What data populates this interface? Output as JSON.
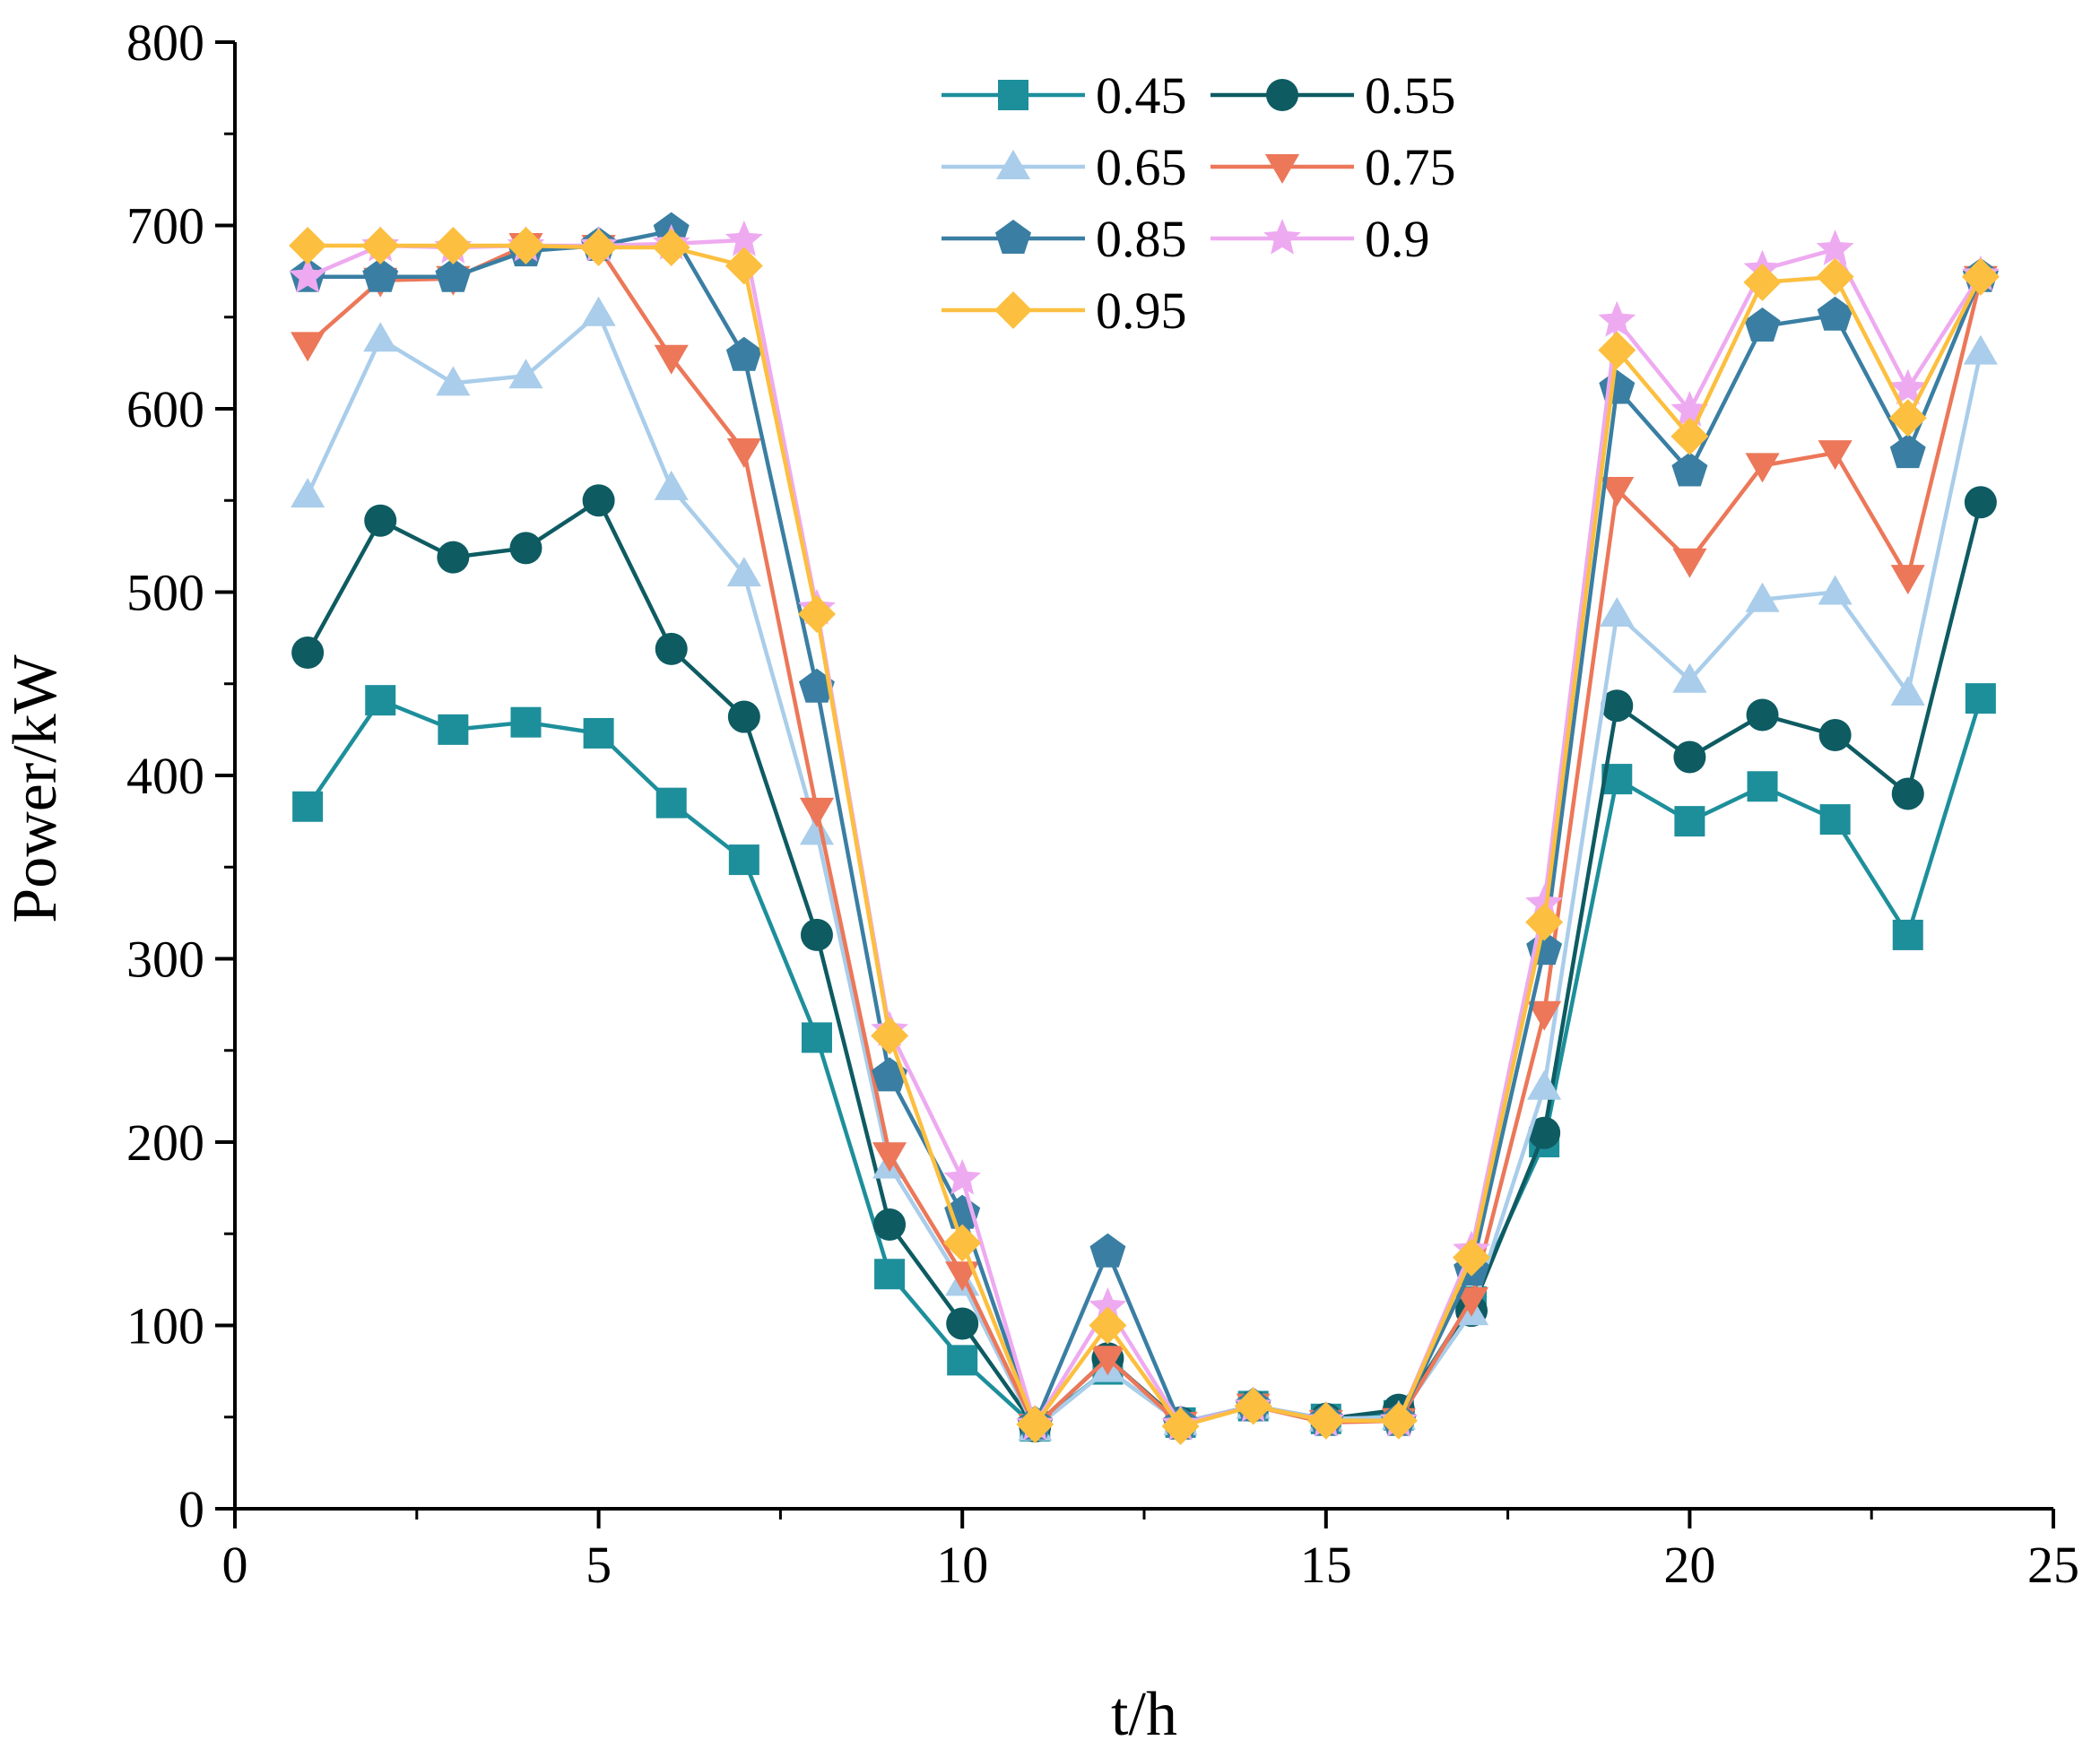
{
  "chart_data": {
    "type": "line",
    "xlabel": "t/h",
    "ylabel": "Power/kW",
    "xlim": [
      0,
      25
    ],
    "ylim": [
      0,
      800
    ],
    "x_ticks": [
      0,
      5,
      10,
      15,
      20,
      25
    ],
    "y_ticks": [
      0,
      100,
      200,
      300,
      400,
      500,
      600,
      700,
      800
    ],
    "legend_position": "top-center",
    "x": [
      1,
      2,
      3,
      4,
      5,
      6,
      7,
      8,
      9,
      10,
      11,
      12,
      13,
      14,
      15,
      16,
      17,
      18,
      19,
      20,
      21,
      22,
      23,
      24
    ],
    "series": [
      {
        "name": "0.45",
        "color": "#1d8f9b",
        "marker": "square",
        "values": [
          383,
          441,
          425,
          429,
          423,
          385,
          354,
          257,
          128,
          81,
          45,
          76,
          47,
          56,
          49,
          51,
          113,
          200,
          398,
          375,
          394,
          376,
          313,
          442
        ]
      },
      {
        "name": "0.55",
        "color": "#0e5b62",
        "marker": "circle",
        "values": [
          467,
          539,
          519,
          524,
          550,
          469,
          432,
          313,
          155,
          101,
          45,
          82,
          47,
          56,
          49,
          54,
          108,
          205,
          438,
          410,
          433,
          422,
          390,
          549
        ]
      },
      {
        "name": "0.65",
        "color": "#a9cdea",
        "marker": "triangle-up",
        "values": [
          553,
          638,
          614,
          618,
          652,
          557,
          510,
          369,
          187,
          123,
          44,
          76,
          47,
          56,
          49,
          50,
          107,
          230,
          488,
          452,
          496,
          500,
          445,
          631
        ]
      },
      {
        "name": "0.75",
        "color": "#ec7759",
        "marker": "triangle-down",
        "values": [
          635,
          670,
          671,
          689,
          688,
          628,
          577,
          381,
          193,
          128,
          45,
          82,
          46,
          56,
          47,
          48,
          114,
          270,
          556,
          517,
          569,
          576,
          508,
          671
        ]
      },
      {
        "name": "0.85",
        "color": "#3a7ea3",
        "marker": "pentagon",
        "values": [
          672,
          672,
          672,
          686,
          689,
          697,
          629,
          448,
          236,
          161,
          46,
          140,
          46,
          56,
          48,
          48,
          130,
          305,
          611,
          566,
          645,
          651,
          576,
          672
        ]
      },
      {
        "name": "0.9",
        "color": "#eeaaf0",
        "marker": "star",
        "values": [
          672,
          689,
          688,
          689,
          689,
          690,
          692,
          491,
          261,
          180,
          46,
          110,
          46,
          56,
          48,
          48,
          141,
          330,
          648,
          599,
          676,
          687,
          611,
          673
        ]
      },
      {
        "name": "0.95",
        "color": "#fcbf3f",
        "marker": "diamond",
        "values": [
          689,
          689,
          689,
          689,
          688,
          688,
          678,
          488,
          258,
          145,
          46,
          100,
          45,
          56,
          48,
          48,
          137,
          320,
          632,
          585,
          669,
          672,
          595,
          672
        ]
      }
    ]
  }
}
